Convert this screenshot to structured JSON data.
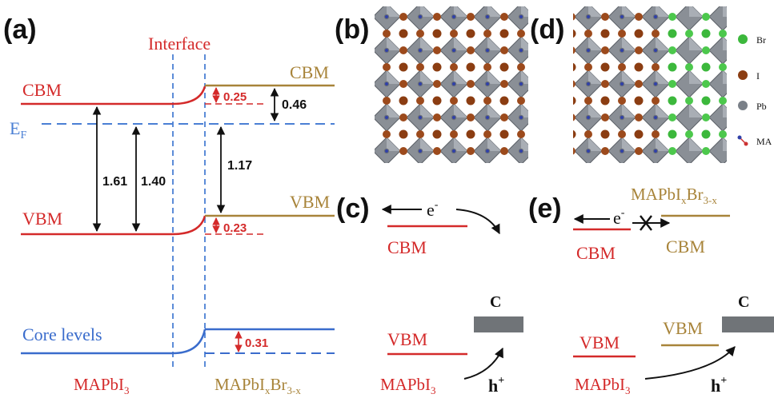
{
  "panel_labels": {
    "a": "(a)",
    "b": "(b)",
    "c": "(c)",
    "d": "(d)",
    "e": "(e)"
  },
  "panel_a": {
    "interface_label": "Interface",
    "left_cbm": "CBM",
    "left_vbm": "VBM",
    "ef_main": "E",
    "ef_sub": "F",
    "core_levels": "Core levels",
    "right_cbm": "CBM",
    "right_vbm": "VBM",
    "values": {
      "gap_left_1": "1.61",
      "gap_left_2": "1.40",
      "right_cbm_offset": "0.46",
      "right_gap": "1.17",
      "cbm_shift": "0.25",
      "vbm_shift": "0.23",
      "core_shift": "0.31"
    },
    "left_material": {
      "base": "MAPbI",
      "sub": "3"
    },
    "right_material": {
      "base": "MAPbI",
      "sub1": "x",
      "mid": "Br",
      "sub2": "3-x"
    }
  },
  "legend_d": {
    "items": [
      {
        "label": "Br",
        "color": "#3cb83c"
      },
      {
        "label": "I",
        "color": "#8b3d12"
      },
      {
        "label": "Pb",
        "color": "#7a8088"
      },
      {
        "label": "MA",
        "color": "#cc3333"
      }
    ]
  },
  "panel_c": {
    "electron": "e",
    "electron_sup": "-",
    "cbm": "CBM",
    "vbm": "VBM",
    "carbon": "C",
    "material": {
      "base": "MAPbI",
      "sub": "3"
    },
    "hole": "h",
    "hole_sup": "+"
  },
  "panel_e": {
    "top_material": {
      "base": "MAPbI",
      "sub1": "x",
      "mid": "Br",
      "sub2": "3-x"
    },
    "electron": "e",
    "electron_sup": "-",
    "cbm_left": "CBM",
    "cbm_right": "CBM",
    "vbm_left": "VBM",
    "vbm_right": "VBM",
    "carbon": "C",
    "material": {
      "base": "MAPbI",
      "sub": "3"
    },
    "hole": "h",
    "hole_sup": "+"
  },
  "colors": {
    "red": "#d42a2a",
    "gold": "#a8843a",
    "blue": "#3a6ccc",
    "dashblue": "#4a7fd4",
    "black": "#111111"
  }
}
